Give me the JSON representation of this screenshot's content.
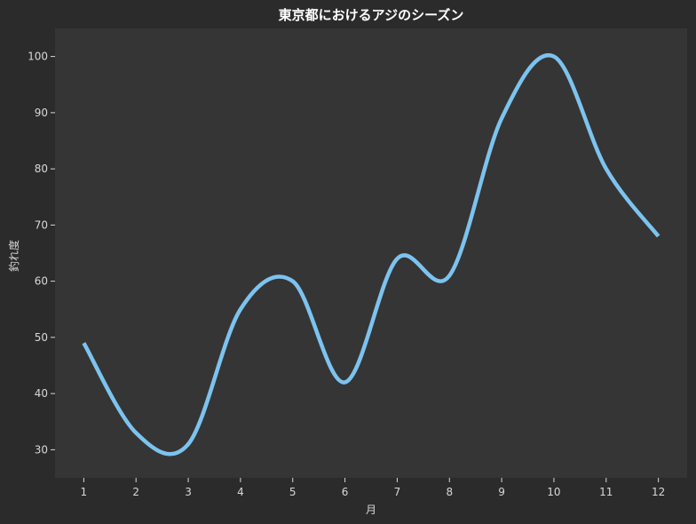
{
  "chart_data": {
    "type": "line",
    "title": "東京都におけるアジのシーズン",
    "xlabel": "月",
    "ylabel": "釣れ度",
    "x": [
      1,
      2,
      3,
      4,
      5,
      6,
      7,
      8,
      9,
      10,
      11,
      12
    ],
    "series": [
      {
        "values": [
          49,
          33,
          31,
          55,
          60,
          42,
          64,
          61,
          89,
          100,
          80,
          68
        ]
      }
    ],
    "xticks": [
      "1",
      "2",
      "3",
      "4",
      "5",
      "6",
      "7",
      "8",
      "9",
      "10",
      "11",
      "12"
    ],
    "yticks": [
      30,
      40,
      50,
      60,
      70,
      80,
      90,
      100
    ],
    "xlim": [
      0.45,
      12.55
    ],
    "ylim": [
      25,
      105
    ],
    "grid": false,
    "colors": {
      "background": "#2b2b2b",
      "plot_area": "#353535",
      "line": "#7cc3ef",
      "text": "#d8d8d8"
    }
  }
}
